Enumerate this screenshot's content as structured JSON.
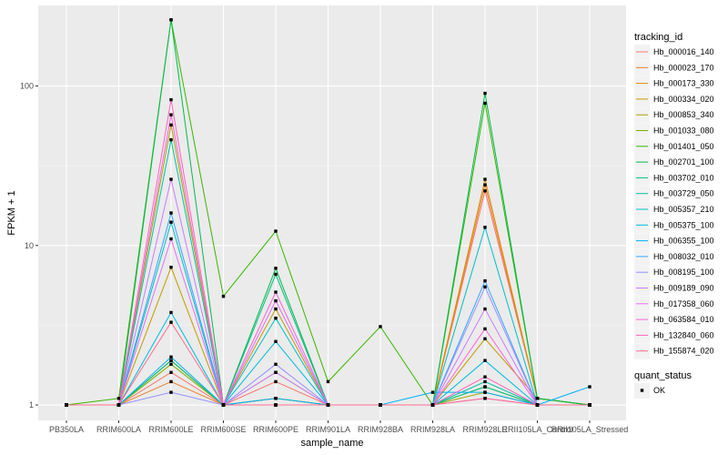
{
  "chart_data": {
    "type": "line",
    "xlabel": "sample_name",
    "ylabel": "FPKM + 1",
    "y_scale": "log10",
    "ylim": [
      0.8,
      320
    ],
    "y_ticks": [
      1,
      10,
      100
    ],
    "y_tick_labels": [
      "1",
      "10",
      "100"
    ],
    "categories": [
      "PB350LA",
      "RRIM600LA",
      "RRIM600LE",
      "RRIM600SE",
      "RRIM600PE",
      "RRIM901LA",
      "RRIM928BA",
      "RRIM928LA",
      "RRIM928LE",
      "RRII105LA_Control",
      "RRII105LA_Stressed"
    ],
    "legend_color": {
      "title": "tracking_id",
      "position": "right"
    },
    "legend_shape": {
      "title": "quant_status",
      "entries": [
        "OK"
      ]
    },
    "series": [
      {
        "name": "Hb_000016_140",
        "color": "#F8766D",
        "values": [
          1.0,
          1.0,
          1.6,
          1.0,
          1.4,
          1.0,
          1.0,
          1.0,
          22.0,
          1.1,
          1.0
        ]
      },
      {
        "name": "Hb_000023_170",
        "color": "#EA8331",
        "values": [
          1.0,
          1.0,
          1.4,
          1.0,
          1.1,
          1.0,
          1.0,
          1.0,
          24.0,
          1.1,
          1.0
        ]
      },
      {
        "name": "Hb_000173_330",
        "color": "#D89000",
        "values": [
          1.0,
          1.0,
          1.9,
          1.0,
          1.6,
          1.0,
          1.0,
          1.0,
          26.0,
          1.1,
          1.0
        ]
      },
      {
        "name": "Hb_000334_020",
        "color": "#C09B00",
        "values": [
          1.0,
          1.0,
          7.3,
          1.0,
          4.0,
          1.0,
          1.0,
          1.0,
          2.6,
          1.1,
          1.0
        ]
      },
      {
        "name": "Hb_000853_340",
        "color": "#A3A500",
        "values": [
          1.0,
          1.0,
          57.0,
          1.0,
          1.1,
          1.0,
          1.0,
          1.0,
          1.2,
          1.0,
          1.0
        ]
      },
      {
        "name": "Hb_001033_080",
        "color": "#7CAE00",
        "values": [
          1.0,
          1.0,
          1.8,
          1.0,
          1.0,
          1.0,
          1.0,
          1.0,
          1.3,
          1.0,
          1.0
        ]
      },
      {
        "name": "Hb_001401_050",
        "color": "#39B600",
        "values": [
          1.0,
          1.1,
          260.0,
          4.8,
          12.3,
          1.4,
          3.1,
          1.0,
          78.0,
          1.1,
          1.0
        ]
      },
      {
        "name": "Hb_002701_100",
        "color": "#00BB4E",
        "values": [
          1.0,
          1.0,
          260.0,
          1.0,
          7.2,
          1.0,
          1.0,
          1.0,
          90.0,
          1.1,
          1.0
        ]
      },
      {
        "name": "Hb_003702_010",
        "color": "#00BF7D",
        "values": [
          1.0,
          1.0,
          1.9,
          1.0,
          6.6,
          1.0,
          1.0,
          1.0,
          1.3,
          1.0,
          1.0
        ]
      },
      {
        "name": "Hb_003729_050",
        "color": "#00C1A3",
        "values": [
          1.0,
          1.0,
          46.0,
          1.0,
          1.0,
          1.0,
          1.0,
          1.0,
          1.4,
          1.0,
          1.0
        ]
      },
      {
        "name": "Hb_005357_210",
        "color": "#00BFC4",
        "values": [
          1.0,
          1.0,
          14.0,
          1.0,
          3.5,
          1.0,
          1.0,
          1.0,
          13.0,
          1.0,
          1.0
        ]
      },
      {
        "name": "Hb_005375_100",
        "color": "#00BAE0",
        "values": [
          1.0,
          1.0,
          3.8,
          1.0,
          2.5,
          1.0,
          1.0,
          1.0,
          1.9,
          1.0,
          1.0
        ]
      },
      {
        "name": "Hb_006355_100",
        "color": "#00B0F6",
        "values": [
          1.0,
          1.0,
          2.0,
          1.0,
          1.1,
          1.0,
          1.0,
          1.2,
          1.2,
          1.0,
          1.3
        ]
      },
      {
        "name": "Hb_008032_010",
        "color": "#35A2FF",
        "values": [
          1.0,
          1.0,
          16.0,
          1.0,
          1.0,
          1.0,
          1.0,
          1.0,
          6.0,
          1.0,
          1.0
        ]
      },
      {
        "name": "Hb_008195_100",
        "color": "#9590FF",
        "values": [
          1.0,
          1.0,
          1.2,
          1.0,
          1.8,
          1.0,
          1.0,
          1.0,
          5.5,
          1.0,
          1.0
        ]
      },
      {
        "name": "Hb_009189_090",
        "color": "#C77CFF",
        "values": [
          1.0,
          1.0,
          26.0,
          1.0,
          1.6,
          1.0,
          1.0,
          1.0,
          4.0,
          1.0,
          1.0
        ]
      },
      {
        "name": "Hb_017358_060",
        "color": "#E76BF3",
        "values": [
          1.0,
          1.0,
          11.0,
          1.0,
          4.5,
          1.0,
          1.0,
          1.0,
          1.1,
          1.0,
          1.0
        ]
      },
      {
        "name": "Hb_063584_010",
        "color": "#FA62DB",
        "values": [
          1.0,
          1.0,
          66.0,
          1.0,
          5.1,
          1.0,
          1.0,
          1.0,
          3.0,
          1.0,
          1.0
        ]
      },
      {
        "name": "Hb_132840_060",
        "color": "#FF62BC",
        "values": [
          1.0,
          1.0,
          82.0,
          1.0,
          1.0,
          1.0,
          1.0,
          1.0,
          1.5,
          1.0,
          1.0
        ]
      },
      {
        "name": "Hb_155874_020",
        "color": "#FF6C91",
        "values": [
          1.0,
          1.0,
          3.3,
          1.0,
          1.0,
          1.0,
          1.0,
          1.0,
          1.1,
          1.0,
          1.0
        ]
      }
    ]
  }
}
